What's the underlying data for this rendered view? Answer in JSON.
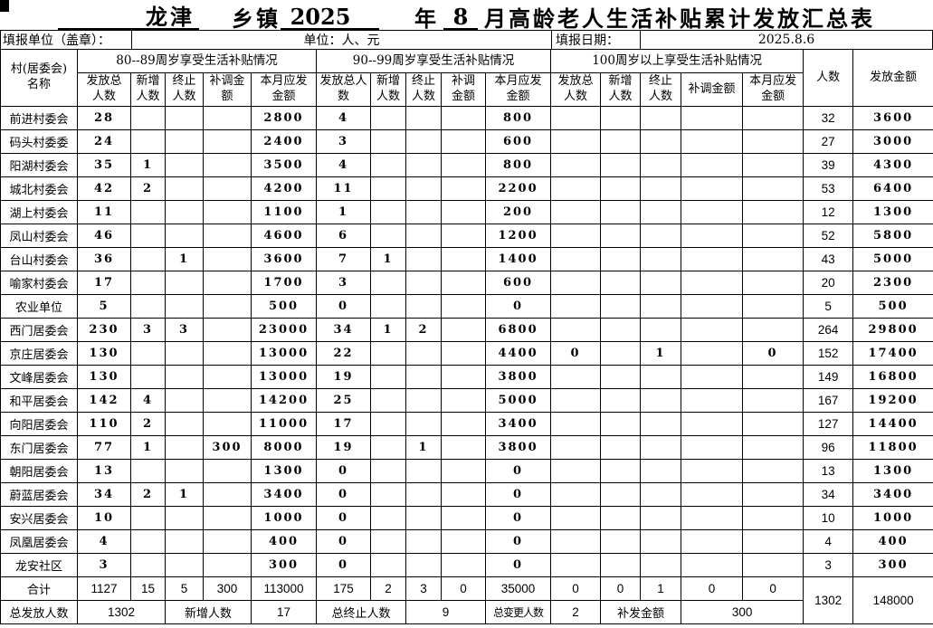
{
  "title": {
    "town": "龙津",
    "township_label": "乡镇",
    "year": "2025",
    "year_label": "年",
    "month": "8",
    "suffix": "月高龄老人生活补贴累计发放汇总表"
  },
  "info": {
    "report_unit_label": "填报单位（盖章）：",
    "unit_label": "单位：人、元",
    "date_label": "填报日期：",
    "date_value": "2025.8.6"
  },
  "table": {
    "header": {
      "name": "村(居委会)\n名称",
      "people": "人数",
      "amount": "发放金额",
      "groups": [
        {
          "label": "80--89周岁享受生活补贴情况",
          "cols": [
            "发放总\n人数",
            "新增\n人数",
            "终止\n人数",
            "补调金\n额",
            "本月应发\n金额"
          ]
        },
        {
          "label": "90--99周岁享受生活补贴情况",
          "cols": [
            "发放总人\n数",
            "新增\n人数",
            "终止\n人数",
            "补调\n金额",
            "本月应发\n金额"
          ]
        },
        {
          "label": "100周岁以上享受生活补贴情况",
          "cols": [
            "发放总\n人数",
            "新增\n人数",
            "终止\n人数",
            "补调金额",
            "本月应发\n金额"
          ]
        }
      ]
    },
    "rows": [
      [
        "前进村委会",
        "28",
        "",
        "",
        "",
        "2800",
        "4",
        "",
        "",
        "",
        "800",
        "",
        "",
        "",
        "",
        "",
        "32",
        "3600"
      ],
      [
        "码头村委委",
        "24",
        "",
        "",
        "",
        "2400",
        "3",
        "",
        "",
        "",
        "600",
        "",
        "",
        "",
        "",
        "",
        "27",
        "3000"
      ],
      [
        "阳湖村委会",
        "35",
        "1",
        "",
        "",
        "3500",
        "4",
        "",
        "",
        "",
        "800",
        "",
        "",
        "",
        "",
        "",
        "39",
        "4300"
      ],
      [
        "城北村委会",
        "42",
        "2",
        "",
        "",
        "4200",
        "11",
        "",
        "",
        "",
        "2200",
        "",
        "",
        "",
        "",
        "",
        "53",
        "6400"
      ],
      [
        "湖上村委会",
        "11",
        "",
        "",
        "",
        "1100",
        "1",
        "",
        "",
        "",
        "200",
        "",
        "",
        "",
        "",
        "",
        "12",
        "1300"
      ],
      [
        "凤山村委会",
        "46",
        "",
        "",
        "",
        "4600",
        "6",
        "",
        "",
        "",
        "1200",
        "",
        "",
        "",
        "",
        "",
        "52",
        "5800"
      ],
      [
        "台山村委会",
        "36",
        "",
        "1",
        "",
        "3600",
        "7",
        "1",
        "",
        "",
        "1400",
        "",
        "",
        "",
        "",
        "",
        "43",
        "5000"
      ],
      [
        "喻家村委会",
        "17",
        "",
        "",
        "",
        "1700",
        "3",
        "",
        "",
        "",
        "600",
        "",
        "",
        "",
        "",
        "",
        "20",
        "2300"
      ],
      [
        "农业单位",
        "5",
        "",
        "",
        "",
        "500",
        "0",
        "",
        "",
        "",
        "0",
        "",
        "",
        "",
        "",
        "",
        "5",
        "500"
      ],
      [
        "西门居委会",
        "230",
        "3",
        "3",
        "",
        "23000",
        "34",
        "1",
        "2",
        "",
        "6800",
        "",
        "",
        "",
        "",
        "",
        "264",
        "29800"
      ],
      [
        "京庄居委会",
        "130",
        "",
        "",
        "",
        "13000",
        "22",
        "",
        "",
        "",
        "4400",
        "0",
        "",
        "1",
        "",
        "0",
        "152",
        "17400"
      ],
      [
        "文峰居委会",
        "130",
        "",
        "",
        "",
        "13000",
        "19",
        "",
        "",
        "",
        "3800",
        "",
        "",
        "",
        "",
        "",
        "149",
        "16800"
      ],
      [
        "和平居委会",
        "142",
        "4",
        "",
        "",
        "14200",
        "25",
        "",
        "",
        "",
        "5000",
        "",
        "",
        "",
        "",
        "",
        "167",
        "19200"
      ],
      [
        "向阳居委会",
        "110",
        "2",
        "",
        "",
        "11000",
        "17",
        "",
        "",
        "",
        "3400",
        "",
        "",
        "",
        "",
        "",
        "127",
        "14400"
      ],
      [
        "东门居委会",
        "77",
        "1",
        "",
        "300",
        "8000",
        "19",
        "",
        "1",
        "",
        "3800",
        "",
        "",
        "",
        "",
        "",
        "96",
        "11800"
      ],
      [
        "朝阳居委会",
        "13",
        "",
        "",
        "",
        "1300",
        "0",
        "",
        "",
        "",
        "0",
        "",
        "",
        "",
        "",
        "",
        "13",
        "1300"
      ],
      [
        "蔚蓝居委会",
        "34",
        "2",
        "1",
        "",
        "3400",
        "0",
        "",
        "",
        "",
        "0",
        "",
        "",
        "",
        "",
        "",
        "34",
        "3400"
      ],
      [
        "安兴居委会",
        "10",
        "",
        "",
        "",
        "1000",
        "0",
        "",
        "",
        "",
        "0",
        "",
        "",
        "",
        "",
        "",
        "10",
        "1000"
      ],
      [
        "凤凰居委会",
        "4",
        "",
        "",
        "",
        "400",
        "0",
        "",
        "",
        "",
        "0",
        "",
        "",
        "",
        "",
        "",
        "4",
        "400"
      ],
      [
        "龙安社区",
        "3",
        "",
        "",
        "",
        "300",
        "0",
        "",
        "",
        "",
        "0",
        "",
        "",
        "",
        "",
        "",
        "3",
        "300"
      ]
    ],
    "total": {
      "label": "合计",
      "values": [
        "1127",
        "15",
        "5",
        "300",
        "113000",
        "175",
        "2",
        "3",
        "0",
        "35000",
        "0",
        "0",
        "1",
        "0",
        "0"
      ],
      "people": "1302",
      "amount": "148000"
    },
    "summary": [
      "总发放人数",
      "1302",
      "新增人数",
      "17",
      "总终止人数",
      "9",
      "总变更人数",
      "2",
      "补发金额",
      "300"
    ]
  }
}
